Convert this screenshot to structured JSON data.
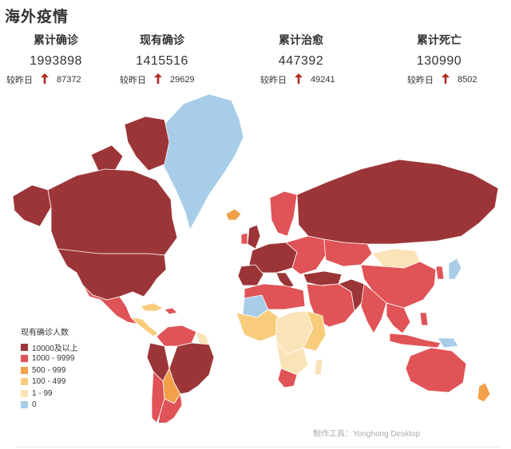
{
  "title": "海外疫情",
  "stats": [
    {
      "label": "累计确诊",
      "value": "1993898",
      "change_label": "较昨日",
      "change": "87372"
    },
    {
      "label": "现有确诊",
      "value": "1415516",
      "change_label": "较昨日",
      "change": "29629"
    },
    {
      "label": "累计治愈",
      "value": "447392",
      "change_label": "较昨日",
      "change": "49241"
    },
    {
      "label": "累计死亡",
      "value": "130990",
      "change_label": "较昨日",
      "change": "8502"
    }
  ],
  "colors": {
    "up_arrow": "#b3281e",
    "water": "#ffffff"
  },
  "legend": {
    "title": "现有确诊人数",
    "items": [
      {
        "label": "10000及以上",
        "color": "#9c3538"
      },
      {
        "label": "1000 - 9999",
        "color": "#e05356"
      },
      {
        "label": "500 - 999",
        "color": "#f3a04a"
      },
      {
        "label": "100 - 499",
        "color": "#f8cc7a"
      },
      {
        "label": "1 - 99",
        "color": "#fbe3b8"
      },
      {
        "label": "0",
        "color": "#a7cde9"
      }
    ]
  },
  "credit": "制作工具：Yonghong Desktop"
}
